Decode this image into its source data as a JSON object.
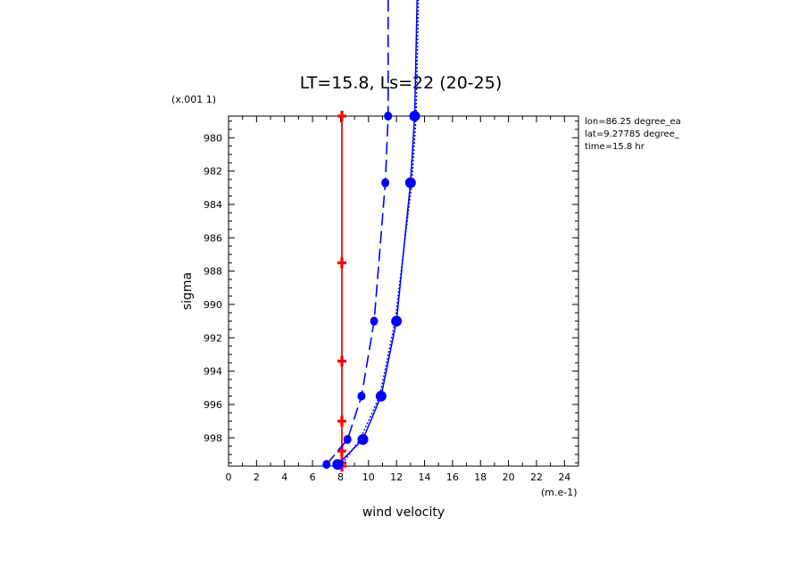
{
  "chart_data": {
    "type": "line",
    "title": "LT=15.8, Ls=22 (20-25)",
    "xlabel": "wind velocity",
    "ylabel": "sigma",
    "x_units": "(m.e-1)",
    "y_scale_note": "(x.001 1)",
    "xlim": [
      0,
      25
    ],
    "ylim": [
      978.7,
      999.7
    ],
    "y_inverted": true,
    "grid": false,
    "x_ticks": [
      "0",
      "2",
      "4",
      "6",
      "8",
      "10",
      "12",
      "14",
      "16",
      "18",
      "20",
      "22",
      "24"
    ],
    "y_ticks": [
      "980",
      "982",
      "984",
      "986",
      "988",
      "990",
      "992",
      "994",
      "996",
      "998"
    ],
    "annotations": [
      "lon=86.25 degree_ea",
      "lat=9.27785 degree_",
      "time=15.8 hr"
    ],
    "series": [
      {
        "style": "solid-red",
        "color": "#ff0000",
        "x": [
          8.1,
          8.1,
          8.1,
          8.1,
          8.1,
          8.1,
          8.1
        ],
        "y": [
          978.7,
          987.5,
          993.4,
          997.0,
          998.8,
          999.5,
          999.7
        ]
      },
      {
        "style": "dashed-blue",
        "color": "#0000ff",
        "x": [
          7.0,
          8.5,
          9.5,
          10.4,
          11.2,
          11.4,
          11.4
        ],
        "y": [
          999.6,
          998.1,
          995.5,
          991.0,
          982.7,
          978.7,
          970.5
        ]
      },
      {
        "style": "solid-blue",
        "color": "#0000ff",
        "x": [
          7.8,
          9.6,
          10.9,
          12.0,
          13.0,
          13.3,
          13.5
        ],
        "y": [
          999.6,
          998.1,
          995.5,
          991.0,
          982.7,
          978.7,
          970.5
        ]
      },
      {
        "style": "dotted-blue",
        "color": "#0000ff",
        "x": [
          8.0,
          9.4,
          10.8,
          11.9,
          13.1,
          13.4,
          13.6
        ],
        "y": [
          999.7,
          998.1,
          995.5,
          991.0,
          982.7,
          978.7,
          970.5
        ]
      }
    ]
  }
}
